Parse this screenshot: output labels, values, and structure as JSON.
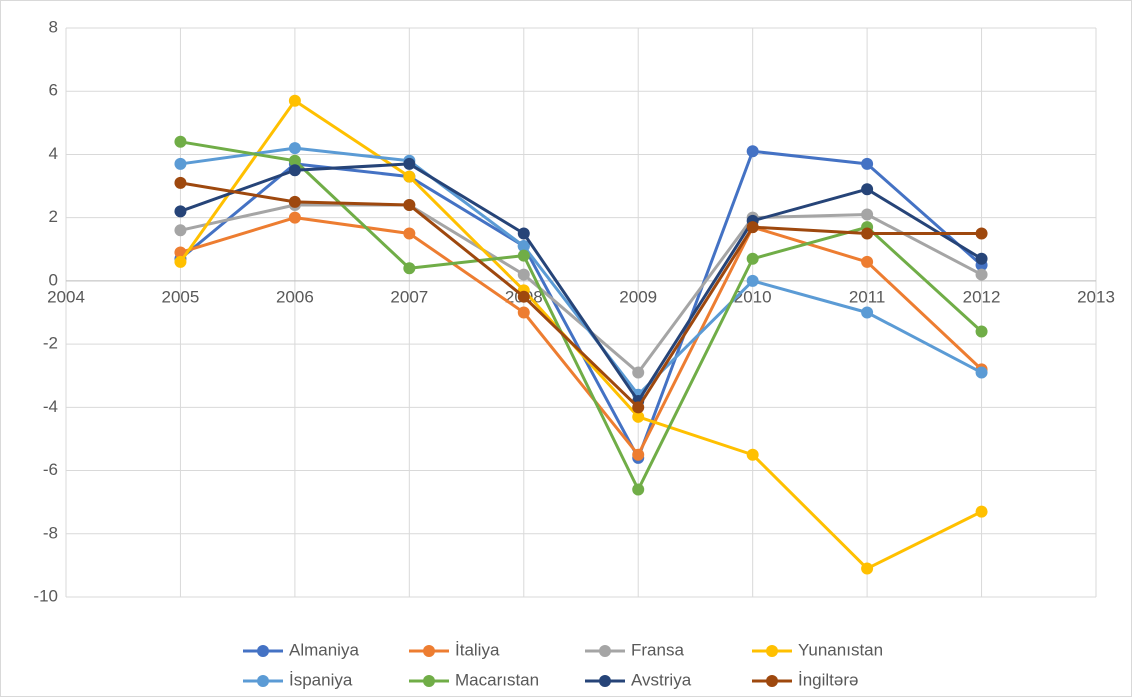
{
  "chart_data": {
    "type": "line",
    "x": [
      2005,
      2006,
      2007,
      2008,
      2009,
      2010,
      2011,
      2012
    ],
    "series": [
      {
        "name": "Almaniya",
        "color": "#4472c4",
        "values": [
          0.7,
          3.7,
          3.3,
          1.1,
          -5.6,
          4.1,
          3.7,
          0.5
        ]
      },
      {
        "name": "İtaliya",
        "color": "#ed7d31",
        "values": [
          0.9,
          2.0,
          1.5,
          -1.0,
          -5.5,
          1.7,
          0.6,
          -2.8
        ]
      },
      {
        "name": "Fransa",
        "color": "#a5a5a5",
        "values": [
          1.6,
          2.4,
          2.4,
          0.2,
          -2.9,
          2.0,
          2.1,
          0.2
        ]
      },
      {
        "name": "Yunanıstan",
        "color": "#ffc000",
        "values": [
          0.6,
          5.7,
          3.3,
          -0.3,
          -4.3,
          -5.5,
          -9.1,
          -7.3
        ]
      },
      {
        "name": "İspaniya",
        "color": "#5b9bd5",
        "values": [
          3.7,
          4.2,
          3.8,
          1.1,
          -3.6,
          0.0,
          -1.0,
          -2.9
        ]
      },
      {
        "name": "Macarıstan",
        "color": "#70ad47",
        "values": [
          4.4,
          3.8,
          0.4,
          0.8,
          -6.6,
          0.7,
          1.7,
          -1.6
        ]
      },
      {
        "name": "Avstriya",
        "color": "#264478",
        "values": [
          2.2,
          3.5,
          3.7,
          1.5,
          -3.8,
          1.9,
          2.9,
          0.7
        ]
      },
      {
        "name": "İngiltərə",
        "color": "#9e480e",
        "values": [
          3.1,
          2.5,
          2.4,
          -0.5,
          -4.0,
          1.7,
          1.5,
          1.5
        ]
      }
    ],
    "xlim": [
      2004,
      2013
    ],
    "xticks": [
      2004,
      2005,
      2006,
      2007,
      2008,
      2009,
      2010,
      2011,
      2012,
      2013
    ],
    "ylim": [
      -10,
      8
    ],
    "yticks": [
      -10,
      -8,
      -6,
      -4,
      -2,
      0,
      2,
      4,
      6,
      8
    ],
    "grid": true,
    "legend": "bottom"
  }
}
